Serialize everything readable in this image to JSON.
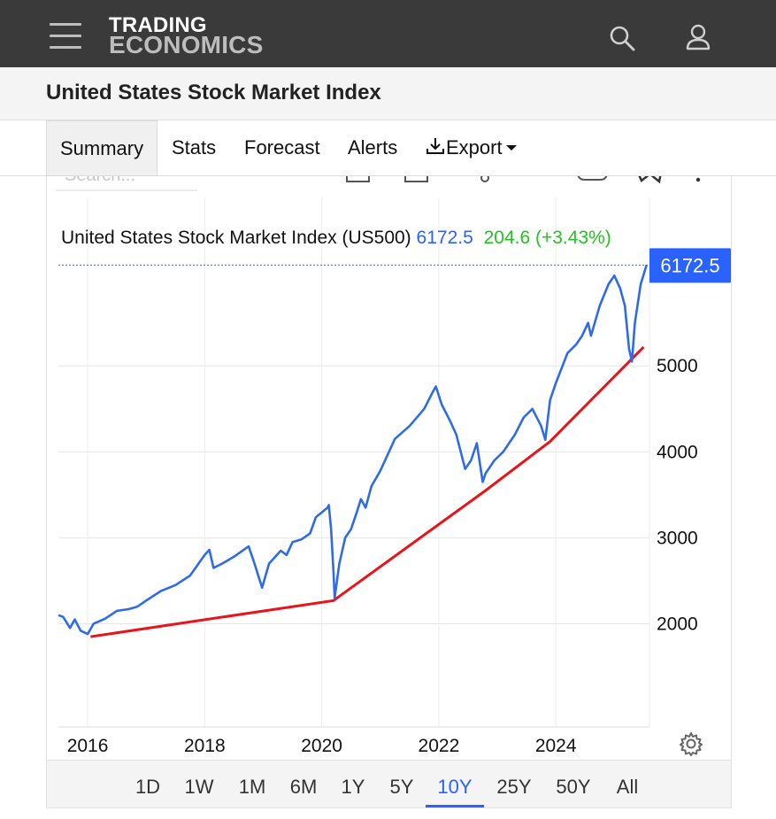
{
  "brand": {
    "line1": "TRADING",
    "line2": "ECONOMICS"
  },
  "page_title": "United States Stock Market Index",
  "tabs": [
    {
      "label": "Summary",
      "active": true
    },
    {
      "label": "Stats"
    },
    {
      "label": "Forecast"
    },
    {
      "label": "Alerts"
    },
    {
      "label": "Export"
    }
  ],
  "search_placeholder": "Search...",
  "ranges": [
    "1D",
    "1W",
    "1M",
    "6M",
    "1Y",
    "5Y",
    "10Y",
    "25Y",
    "50Y",
    "All"
  ],
  "active_range": "10Y",
  "colors": {
    "series": "#2f6be8",
    "trend": "#e8141a",
    "price_tag": "#2962ff",
    "change": "#22c322"
  },
  "chart_data": {
    "type": "line",
    "legend": {
      "name": "United States Stock Market Index (US500)",
      "last": "6172.5",
      "change": "204.6 (+3.43%)"
    },
    "last_value_tag": "6172.5",
    "x_ticks": [
      "2016",
      "2018",
      "2020",
      "2022",
      "2024"
    ],
    "y_ticks": [
      2000,
      3000,
      4000,
      5000
    ],
    "ylim": [
      800,
      6300
    ],
    "xlim": [
      2015.5,
      2025.6
    ],
    "grid": true,
    "series": [
      {
        "name": "US500",
        "x": [
          2015.5,
          2015.58,
          2015.7,
          2015.78,
          2015.88,
          2016.0,
          2016.1,
          2016.3,
          2016.5,
          2016.7,
          2016.85,
          2017.0,
          2017.25,
          2017.5,
          2017.75,
          2018.0,
          2018.08,
          2018.15,
          2018.3,
          2018.5,
          2018.75,
          2018.85,
          2018.98,
          2019.1,
          2019.3,
          2019.4,
          2019.5,
          2019.65,
          2019.8,
          2019.9,
          2020.1,
          2020.12,
          2020.16,
          2020.2,
          2020.22,
          2020.3,
          2020.4,
          2020.5,
          2020.6,
          2020.67,
          2020.75,
          2020.85,
          2021.0,
          2021.25,
          2021.5,
          2021.75,
          2021.9,
          2021.95,
          2022.05,
          2022.2,
          2022.3,
          2022.45,
          2022.55,
          2022.65,
          2022.75,
          2022.8,
          2022.95,
          2023.1,
          2023.3,
          2023.45,
          2023.6,
          2023.75,
          2023.82,
          2023.9,
          2024.0,
          2024.2,
          2024.35,
          2024.45,
          2024.55,
          2024.6,
          2024.75,
          2024.9,
          2025.0,
          2025.1,
          2025.18,
          2025.25,
          2025.3,
          2025.35,
          2025.45,
          2025.55
        ],
        "values": [
          2100,
          2080,
          1950,
          2050,
          1920,
          1880,
          2000,
          2060,
          2150,
          2170,
          2200,
          2270,
          2380,
          2450,
          2560,
          2800,
          2860,
          2650,
          2700,
          2780,
          2900,
          2700,
          2420,
          2700,
          2850,
          2800,
          2950,
          2980,
          3050,
          3240,
          3350,
          3380,
          3100,
          2600,
          2300,
          2700,
          3000,
          3100,
          3300,
          3450,
          3350,
          3600,
          3780,
          4150,
          4300,
          4500,
          4700,
          4760,
          4550,
          4350,
          4200,
          3800,
          3900,
          4100,
          3650,
          3750,
          3900,
          4000,
          4200,
          4400,
          4500,
          4300,
          4140,
          4600,
          4800,
          5150,
          5250,
          5350,
          5500,
          5350,
          5700,
          5950,
          6050,
          5900,
          5700,
          5200,
          5050,
          5500,
          5950,
          6172.5
        ]
      }
    ],
    "trendline": {
      "x": [
        2016.05,
        2020.2,
        2022.8,
        2023.9,
        2025.5
      ],
      "values": [
        1850,
        2270,
        3550,
        4120,
        5220
      ]
    }
  }
}
